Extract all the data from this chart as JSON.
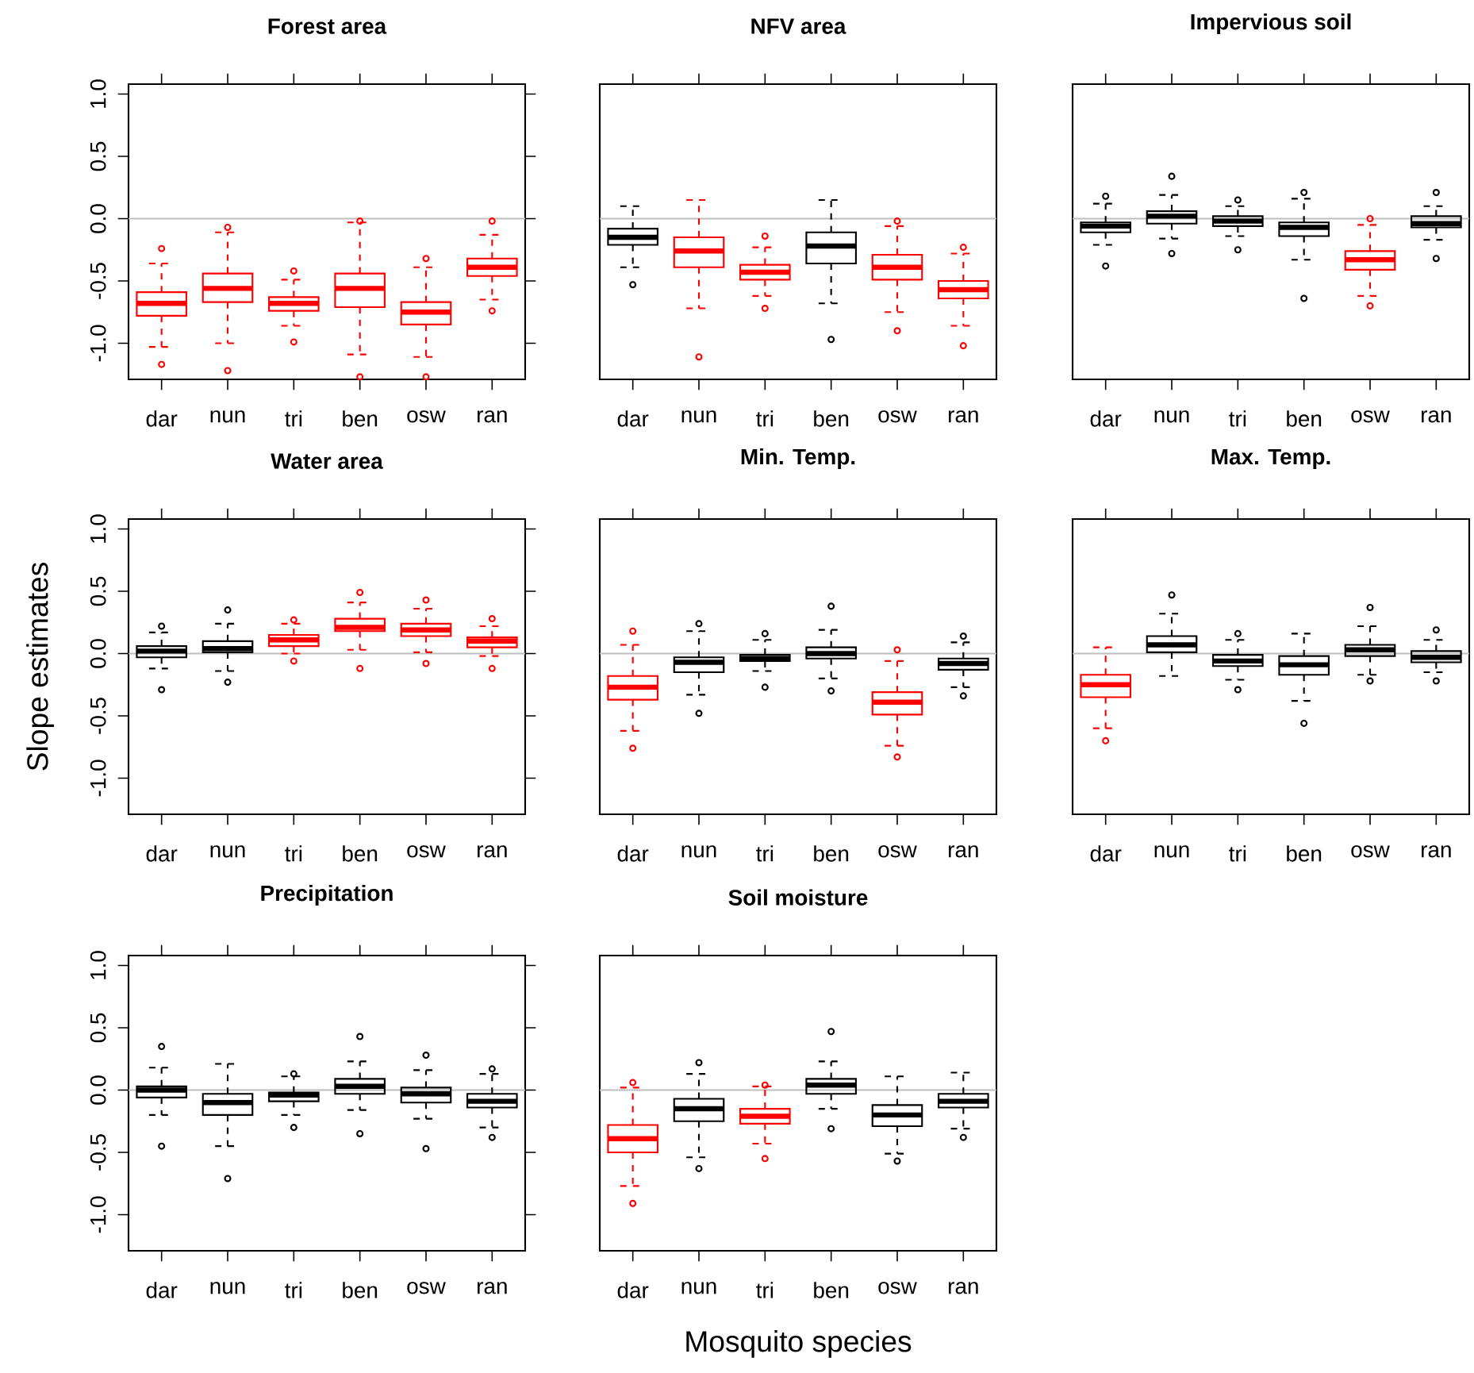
{
  "chart_data": [
    {
      "type": "box",
      "title": "Forest area",
      "categories": [
        "dar",
        "nun",
        "tri",
        "ben",
        "osw",
        "ran"
      ],
      "colors": [
        "#ff0000",
        "#ff0000",
        "#ff0000",
        "#ff0000",
        "#ff0000",
        "#ff0000"
      ],
      "ylim": [
        -1.29,
        1.08
      ],
      "yticks": [
        {
          "value": -1,
          "label": "-1.0"
        },
        {
          "value": -0.5,
          "label": "-0.5"
        },
        {
          "value": 0,
          "label": "0.0"
        },
        {
          "value": 0.5,
          "label": "0.5"
        },
        {
          "value": 1,
          "label": "1.0"
        }
      ],
      "ref_lines": [
        {
          "axis": "y",
          "value": 0,
          "color": "#bebebe"
        }
      ],
      "boxes": [
        {
          "low": -1.03,
          "q1": -0.78,
          "median": -0.68,
          "q3": -0.59,
          "high": -0.36,
          "outliers": [
            -0.24,
            -1.17
          ]
        },
        {
          "low": -1.0,
          "q1": -0.67,
          "median": -0.56,
          "q3": -0.44,
          "high": -0.11,
          "outliers": [
            -0.07,
            -1.22
          ]
        },
        {
          "low": -0.86,
          "q1": -0.74,
          "median": -0.68,
          "q3": -0.63,
          "high": -0.49,
          "outliers": [
            -0.42,
            -0.99
          ]
        },
        {
          "low": -1.09,
          "q1": -0.71,
          "median": -0.56,
          "q3": -0.44,
          "high": -0.03,
          "outliers": [
            -0.02,
            -1.27
          ]
        },
        {
          "low": -1.11,
          "q1": -0.85,
          "median": -0.75,
          "q3": -0.67,
          "high": -0.39,
          "outliers": [
            -0.32,
            -1.27
          ]
        },
        {
          "low": -0.65,
          "q1": -0.46,
          "median": -0.39,
          "q3": -0.32,
          "high": -0.13,
          "outliers": [
            -0.02,
            -0.74
          ]
        }
      ]
    },
    {
      "type": "box",
      "title": "NFV area",
      "categories": [
        "dar",
        "nun",
        "tri",
        "ben",
        "osw",
        "ran"
      ],
      "colors": [
        "#000000",
        "#ff0000",
        "#ff0000",
        "#000000",
        "#ff0000",
        "#ff0000"
      ],
      "ylim": [
        -1.29,
        1.08
      ],
      "tick_labels": "x",
      "ref_lines": [
        {
          "axis": "y",
          "value": 0,
          "color": "#bebebe"
        }
      ],
      "boxes": [
        {
          "low": -0.39,
          "q1": -0.21,
          "median": -0.15,
          "q3": -0.08,
          "high": 0.1,
          "outliers": [
            -0.53
          ]
        },
        {
          "low": -0.72,
          "q1": -0.39,
          "median": -0.26,
          "q3": -0.15,
          "high": 0.15,
          "outliers": [
            -1.11
          ]
        },
        {
          "low": -0.62,
          "q1": -0.49,
          "median": -0.43,
          "q3": -0.37,
          "high": -0.23,
          "outliers": [
            -0.14,
            -0.72
          ]
        },
        {
          "low": -0.68,
          "q1": -0.36,
          "median": -0.22,
          "q3": -0.11,
          "high": 0.15,
          "outliers": [
            -0.97
          ]
        },
        {
          "low": -0.75,
          "q1": -0.49,
          "median": -0.39,
          "q3": -0.29,
          "high": -0.06,
          "outliers": [
            -0.02,
            -0.9
          ]
        },
        {
          "low": -0.86,
          "q1": -0.64,
          "median": -0.57,
          "q3": -0.5,
          "high": -0.28,
          "outliers": [
            -0.23,
            -1.02
          ]
        }
      ]
    },
    {
      "type": "box",
      "title": "Impervious soil",
      "categories": [
        "dar",
        "nun",
        "tri",
        "ben",
        "osw",
        "ran"
      ],
      "colors": [
        "#000000",
        "#000000",
        "#000000",
        "#000000",
        "#ff0000",
        "#000000"
      ],
      "ylim": [
        -1.29,
        1.08
      ],
      "tick_labels": "x",
      "ref_lines": [
        {
          "axis": "y",
          "value": 0,
          "color": "#bebebe"
        }
      ],
      "boxes": [
        {
          "low": -0.21,
          "q1": -0.11,
          "median": -0.06,
          "q3": -0.03,
          "high": 0.12,
          "outliers": [
            0.18,
            -0.38
          ]
        },
        {
          "low": -0.16,
          "q1": -0.04,
          "median": 0.02,
          "q3": 0.06,
          "high": 0.19,
          "outliers": [
            0.34,
            -0.28
          ]
        },
        {
          "low": -0.14,
          "q1": -0.06,
          "median": -0.02,
          "q3": 0.02,
          "high": 0.1,
          "outliers": [
            0.15,
            -0.25
          ]
        },
        {
          "low": -0.33,
          "q1": -0.14,
          "median": -0.07,
          "q3": -0.03,
          "high": 0.16,
          "outliers": [
            0.21,
            -0.64
          ]
        },
        {
          "low": -0.62,
          "q1": -0.41,
          "median": -0.33,
          "q3": -0.26,
          "high": -0.05,
          "outliers": [
            0.0,
            -0.7
          ]
        },
        {
          "low": -0.17,
          "q1": -0.07,
          "median": -0.04,
          "q3": 0.02,
          "high": 0.1,
          "outliers": [
            0.21,
            -0.32
          ]
        }
      ]
    },
    {
      "type": "box",
      "title": "Water area",
      "ylabel": "Slope estimates",
      "categories": [
        "dar",
        "nun",
        "tri",
        "ben",
        "osw",
        "ran"
      ],
      "colors": [
        "#000000",
        "#000000",
        "#ff0000",
        "#ff0000",
        "#ff0000",
        "#ff0000"
      ],
      "ylim": [
        -1.29,
        1.08
      ],
      "yticks": [
        {
          "value": -1,
          "label": "-1.0"
        },
        {
          "value": -0.5,
          "label": "-0.5"
        },
        {
          "value": 0,
          "label": "0.0"
        },
        {
          "value": 0.5,
          "label": "0.5"
        },
        {
          "value": 1,
          "label": "1.0"
        }
      ],
      "ref_lines": [
        {
          "axis": "y",
          "value": 0,
          "color": "#bebebe"
        }
      ],
      "boxes": [
        {
          "low": -0.12,
          "q1": -0.03,
          "median": 0.02,
          "q3": 0.06,
          "high": 0.17,
          "outliers": [
            0.22,
            -0.29
          ]
        },
        {
          "low": -0.14,
          "q1": 0.01,
          "median": 0.04,
          "q3": 0.1,
          "high": 0.24,
          "outliers": [
            0.35,
            -0.23
          ]
        },
        {
          "low": 0.0,
          "q1": 0.06,
          "median": 0.11,
          "q3": 0.15,
          "high": 0.24,
          "outliers": [
            0.27,
            -0.06
          ]
        },
        {
          "low": 0.03,
          "q1": 0.18,
          "median": 0.21,
          "q3": 0.28,
          "high": 0.41,
          "outliers": [
            0.49,
            -0.12
          ]
        },
        {
          "low": 0.01,
          "q1": 0.14,
          "median": 0.19,
          "q3": 0.24,
          "high": 0.36,
          "outliers": [
            0.43,
            -0.08
          ]
        },
        {
          "low": -0.02,
          "q1": 0.05,
          "median": 0.1,
          "q3": 0.13,
          "high": 0.22,
          "outliers": [
            0.28,
            -0.12
          ]
        }
      ]
    },
    {
      "type": "box",
      "title": "Min. Temp.",
      "categories": [
        "dar",
        "nun",
        "tri",
        "ben",
        "osw",
        "ran"
      ],
      "colors": [
        "#ff0000",
        "#000000",
        "#000000",
        "#000000",
        "#ff0000",
        "#000000"
      ],
      "ylim": [
        -1.29,
        1.08
      ],
      "tick_labels": "x",
      "ref_lines": [
        {
          "axis": "y",
          "value": 0,
          "color": "#bebebe"
        }
      ],
      "boxes": [
        {
          "low": -0.62,
          "q1": -0.37,
          "median": -0.27,
          "q3": -0.18,
          "high": 0.07,
          "outliers": [
            0.18,
            -0.76
          ]
        },
        {
          "low": -0.33,
          "q1": -0.15,
          "median": -0.07,
          "q3": -0.03,
          "high": 0.18,
          "outliers": [
            0.24,
            -0.48
          ]
        },
        {
          "low": -0.14,
          "q1": -0.06,
          "median": -0.04,
          "q3": -0.01,
          "high": 0.11,
          "outliers": [
            0.16,
            -0.27
          ]
        },
        {
          "low": -0.2,
          "q1": -0.04,
          "median": 0.0,
          "q3": 0.05,
          "high": 0.19,
          "outliers": [
            0.38,
            -0.3
          ]
        },
        {
          "low": -0.74,
          "q1": -0.49,
          "median": -0.39,
          "q3": -0.31,
          "high": -0.06,
          "outliers": [
            0.03,
            -0.83
          ]
        },
        {
          "low": -0.27,
          "q1": -0.13,
          "median": -0.08,
          "q3": -0.04,
          "high": 0.09,
          "outliers": [
            0.14,
            -0.34
          ]
        }
      ]
    },
    {
      "type": "box",
      "title": "Max. Temp.",
      "categories": [
        "dar",
        "nun",
        "tri",
        "ben",
        "osw",
        "ran"
      ],
      "colors": [
        "#ff0000",
        "#000000",
        "#000000",
        "#000000",
        "#000000",
        "#000000"
      ],
      "ylim": [
        -1.29,
        1.08
      ],
      "tick_labels": "x",
      "ref_lines": [
        {
          "axis": "y",
          "value": 0,
          "color": "#bebebe"
        }
      ],
      "boxes": [
        {
          "low": -0.6,
          "q1": -0.35,
          "median": -0.25,
          "q3": -0.17,
          "high": 0.05,
          "outliers": [
            -0.7
          ]
        },
        {
          "low": -0.18,
          "q1": 0.01,
          "median": 0.07,
          "q3": 0.14,
          "high": 0.32,
          "outliers": [
            0.47
          ]
        },
        {
          "low": -0.21,
          "q1": -0.1,
          "median": -0.06,
          "q3": -0.01,
          "high": 0.11,
          "outliers": [
            0.16,
            -0.29
          ]
        },
        {
          "low": -0.38,
          "q1": -0.17,
          "median": -0.09,
          "q3": -0.02,
          "high": 0.16,
          "outliers": [
            -0.56
          ]
        },
        {
          "low": -0.17,
          "q1": -0.02,
          "median": 0.03,
          "q3": 0.07,
          "high": 0.22,
          "outliers": [
            0.37,
            -0.22
          ]
        },
        {
          "low": -0.15,
          "q1": -0.07,
          "median": -0.03,
          "q3": 0.02,
          "high": 0.11,
          "outliers": [
            0.19,
            -0.22
          ]
        }
      ]
    },
    {
      "type": "box",
      "title": "Precipitation",
      "categories": [
        "dar",
        "nun",
        "tri",
        "ben",
        "osw",
        "ran"
      ],
      "colors": [
        "#000000",
        "#000000",
        "#000000",
        "#000000",
        "#000000",
        "#000000"
      ],
      "ylim": [
        -1.29,
        1.08
      ],
      "yticks": [
        {
          "value": -1,
          "label": "-1.0"
        },
        {
          "value": -0.5,
          "label": "-0.5"
        },
        {
          "value": 0,
          "label": "0.0"
        },
        {
          "value": 0.5,
          "label": "0.5"
        },
        {
          "value": 1,
          "label": "1.0"
        }
      ],
      "ref_lines": [
        {
          "axis": "y",
          "value": 0,
          "color": "#bebebe"
        }
      ],
      "boxes": [
        {
          "low": -0.2,
          "q1": -0.06,
          "median": 0.0,
          "q3": 0.03,
          "high": 0.18,
          "outliers": [
            0.35,
            -0.45
          ]
        },
        {
          "low": -0.45,
          "q1": -0.2,
          "median": -0.1,
          "q3": -0.03,
          "high": 0.21,
          "outliers": [
            -0.71
          ]
        },
        {
          "low": -0.2,
          "q1": -0.09,
          "median": -0.04,
          "q3": -0.02,
          "high": 0.11,
          "outliers": [
            0.13,
            -0.3
          ]
        },
        {
          "low": -0.16,
          "q1": -0.03,
          "median": 0.03,
          "q3": 0.09,
          "high": 0.23,
          "outliers": [
            0.43,
            -0.35
          ]
        },
        {
          "low": -0.23,
          "q1": -0.1,
          "median": -0.03,
          "q3": 0.02,
          "high": 0.16,
          "outliers": [
            0.28,
            -0.47
          ]
        },
        {
          "low": -0.3,
          "q1": -0.14,
          "median": -0.09,
          "q3": -0.03,
          "high": 0.13,
          "outliers": [
            0.17,
            -0.38
          ]
        }
      ]
    },
    {
      "type": "box",
      "title": "Soil moisture",
      "xlabel": "Mosquito species",
      "categories": [
        "dar",
        "nun",
        "tri",
        "ben",
        "osw",
        "ran"
      ],
      "colors": [
        "#ff0000",
        "#000000",
        "#ff0000",
        "#000000",
        "#000000",
        "#000000"
      ],
      "ylim": [
        -1.29,
        1.08
      ],
      "tick_labels": "x",
      "ref_lines": [
        {
          "axis": "y",
          "value": 0,
          "color": "#bebebe"
        }
      ],
      "boxes": [
        {
          "low": -0.77,
          "q1": -0.5,
          "median": -0.39,
          "q3": -0.28,
          "high": 0.02,
          "outliers": [
            0.06,
            -0.91
          ]
        },
        {
          "low": -0.54,
          "q1": -0.25,
          "median": -0.15,
          "q3": -0.07,
          "high": 0.13,
          "outliers": [
            0.22,
            -0.63
          ]
        },
        {
          "low": -0.43,
          "q1": -0.27,
          "median": -0.21,
          "q3": -0.15,
          "high": 0.03,
          "outliers": [
            0.04,
            -0.55
          ]
        },
        {
          "low": -0.15,
          "q1": -0.03,
          "median": 0.04,
          "q3": 0.09,
          "high": 0.23,
          "outliers": [
            0.47,
            -0.31
          ]
        },
        {
          "low": -0.51,
          "q1": -0.29,
          "median": -0.2,
          "q3": -0.12,
          "high": 0.11,
          "outliers": [
            -0.57
          ]
        },
        {
          "low": -0.31,
          "q1": -0.14,
          "median": -0.09,
          "q3": -0.03,
          "high": 0.14,
          "outliers": [
            -0.38
          ]
        }
      ]
    }
  ]
}
